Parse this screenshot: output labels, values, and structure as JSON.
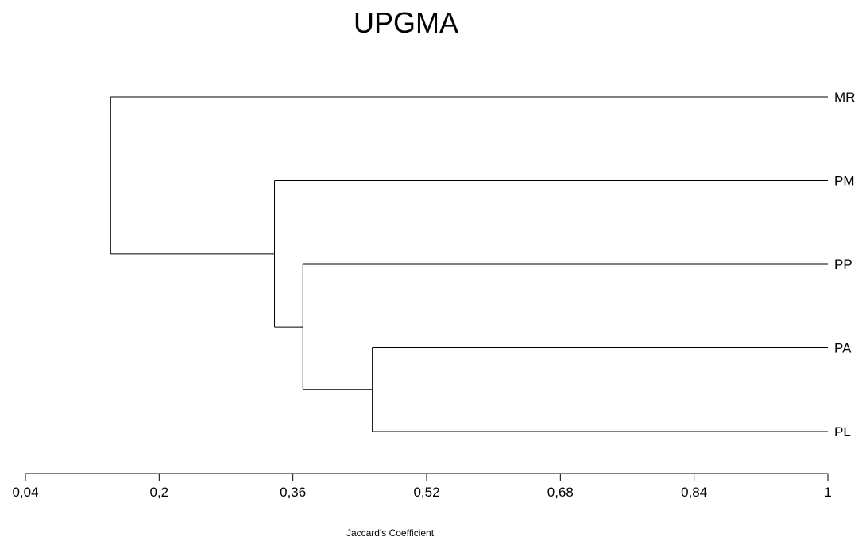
{
  "chart_data": {
    "type": "dendrogram",
    "title": "UPGMA",
    "xlabel": "Jaccard's Coefficient",
    "xlim": [
      0.04,
      1
    ],
    "ticks": [
      "0,04",
      "0,2",
      "0,36",
      "0,52",
      "0,68",
      "0,84",
      "1"
    ],
    "tick_values": [
      0.04,
      0.2,
      0.36,
      0.52,
      0.68,
      0.84,
      1
    ],
    "leaves": [
      "MR",
      "PM",
      "PP",
      "PA",
      "PL"
    ],
    "merges": [
      {
        "join": [
          "PA",
          "PL"
        ],
        "similarity": 0.455
      },
      {
        "join": [
          "PP",
          "PA+PL"
        ],
        "similarity": 0.372
      },
      {
        "join": [
          "PM",
          "PP+PA+PL"
        ],
        "similarity": 0.338
      },
      {
        "join": [
          "MR",
          "PM+PP+PA+PL"
        ],
        "similarity": 0.142
      }
    ]
  }
}
